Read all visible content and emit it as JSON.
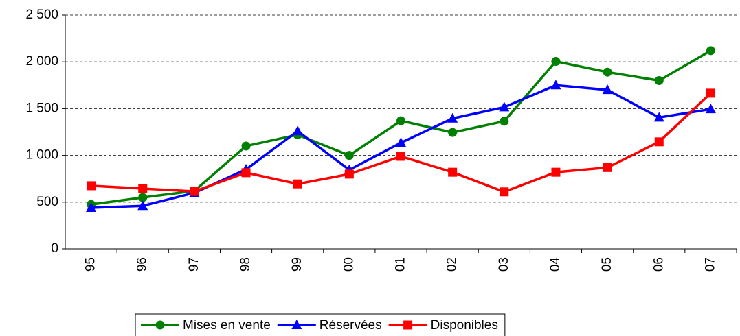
{
  "chart_data": {
    "type": "line",
    "categories": [
      "95",
      "96",
      "97",
      "98",
      "99",
      "00",
      "01",
      "02",
      "03",
      "04",
      "05",
      "06",
      "07"
    ],
    "series": [
      {
        "name": "Mises en vente",
        "color": "#008000",
        "marker": "circle",
        "values": [
          475,
          550,
          620,
          1100,
          1220,
          1000,
          1370,
          1245,
          1365,
          2005,
          1890,
          1800,
          2120
        ]
      },
      {
        "name": "Réservées",
        "color": "#0000ff",
        "marker": "triangle",
        "values": [
          440,
          460,
          600,
          850,
          1260,
          845,
          1135,
          1395,
          1515,
          1750,
          1700,
          1405,
          1495
        ]
      },
      {
        "name": "Disponibles",
        "color": "#ff0000",
        "marker": "square",
        "values": [
          675,
          645,
          615,
          815,
          695,
          800,
          990,
          820,
          610,
          820,
          870,
          1145,
          1665
        ]
      }
    ],
    "ylim": [
      0,
      2500
    ],
    "yticks": [
      0,
      500,
      {
        "value": 1000,
        "label": "1 000"
      },
      {
        "value": 1500,
        "label": "1 500"
      },
      {
        "value": 2000,
        "label": "2 000"
      },
      {
        "value": 2500,
        "label": "2 500"
      }
    ],
    "grid": true,
    "legend": "bottom"
  }
}
